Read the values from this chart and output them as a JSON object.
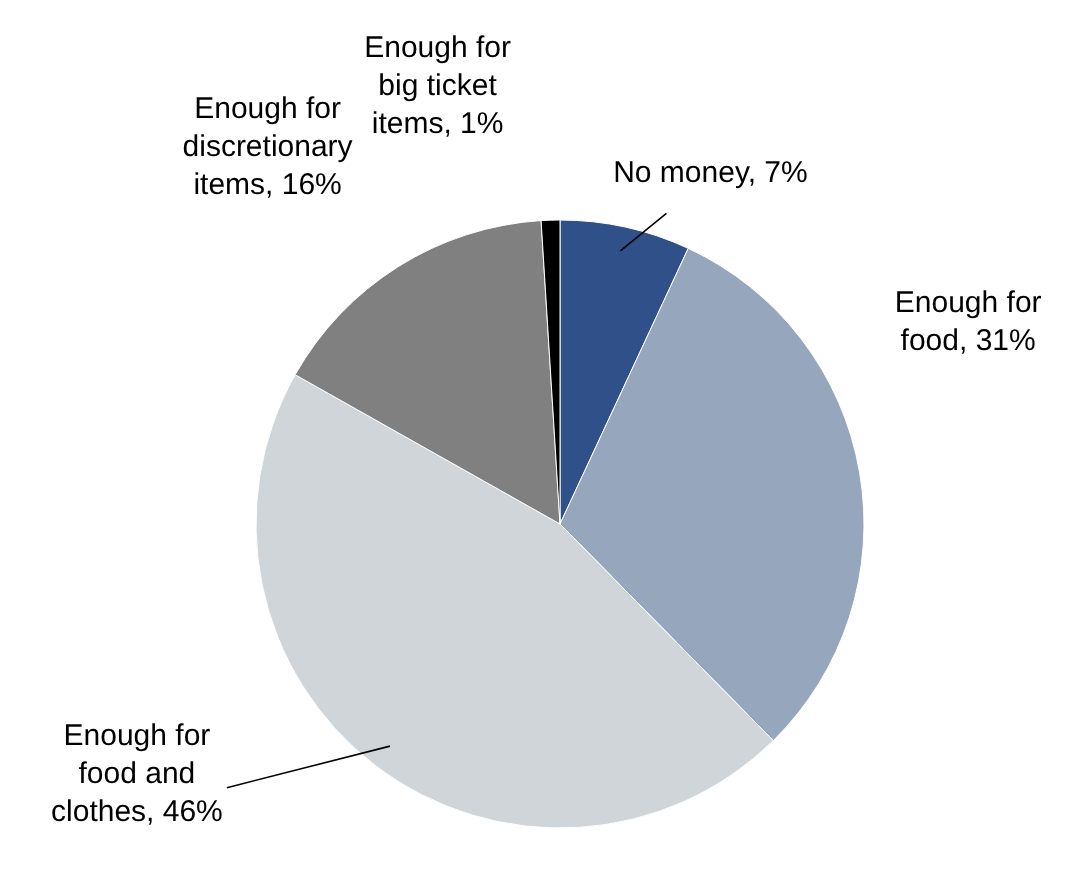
{
  "chart_data": {
    "type": "pie",
    "categories": [
      "No money",
      "Enough for food",
      "Enough for food and clothes",
      "Enough for discretionary items",
      "Enough for big ticket items"
    ],
    "values": [
      7,
      31,
      46,
      16,
      1
    ],
    "colors": [
      "#2f5088",
      "#96a6bd",
      "#cfd5d9",
      "#808080",
      "#000000"
    ],
    "value_labels": [
      "7%",
      "31%",
      "46%",
      "16%",
      "1%"
    ]
  }
}
